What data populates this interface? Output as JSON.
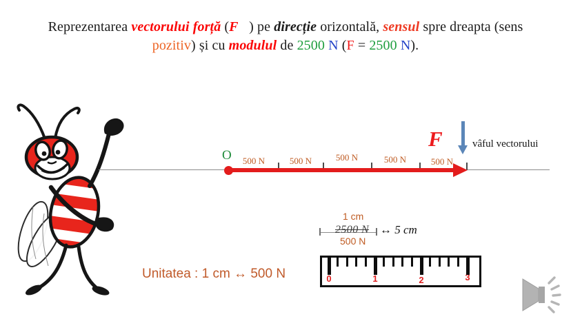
{
  "colors": {
    "vector_red": "#e31c1c",
    "label_orange": "#bf5b22",
    "unit_orange": "#c05a2a",
    "title_red": "#fb0707",
    "sensul_red_orange": "#ee3a23",
    "pozitiv_orange": "#ed6424",
    "value_green": "#1e9e3e",
    "value_blue": "#2343c8",
    "origin_green": "#1f8c3b",
    "tip_arrow_blue": "#5b86b8",
    "ruler_number_red": "#e02020"
  },
  "title": {
    "line1": [
      {
        "text": "Reprezentarea "
      },
      {
        "text": "vectorului forță"
      },
      {
        "text": " ("
      },
      {
        "text": "F⃗"
      },
      {
        "text": ") pe "
      },
      {
        "text": "direcție"
      },
      {
        "text": " orizontală, "
      },
      {
        "text": "sensul"
      },
      {
        "text": " spre dreapta (sens"
      }
    ],
    "line2": [
      {
        "text": "pozitiv"
      },
      {
        "text": ") și cu "
      },
      {
        "text": "modulul"
      },
      {
        "text": " de "
      },
      {
        "text": "2500"
      },
      {
        "text": " N"
      },
      {
        "text": " ("
      },
      {
        "text": "F"
      },
      {
        "text": " = "
      },
      {
        "text": "2500"
      },
      {
        "text": " N"
      },
      {
        "text": ")."
      }
    ]
  },
  "diagram": {
    "origin_label": "O",
    "vector_label": "F",
    "segment_labels": [
      "500 N",
      "500 N",
      "500 N",
      "500 N",
      "500 N"
    ],
    "tip_caption": "vâful vectorului"
  },
  "scale_note": {
    "unit_length": "1 cm",
    "total_force": "2500 N",
    "arrow": "↔",
    "total_length": "5 cm",
    "unit_force": "500 N"
  },
  "ruler": {
    "numbers": [
      "0",
      "1",
      "2",
      "3"
    ]
  },
  "unit_caption": "Unitatea : 1 cm ↔ 500 N",
  "icons": {
    "audio": "speaker-icon",
    "character": "bee-mascot"
  }
}
